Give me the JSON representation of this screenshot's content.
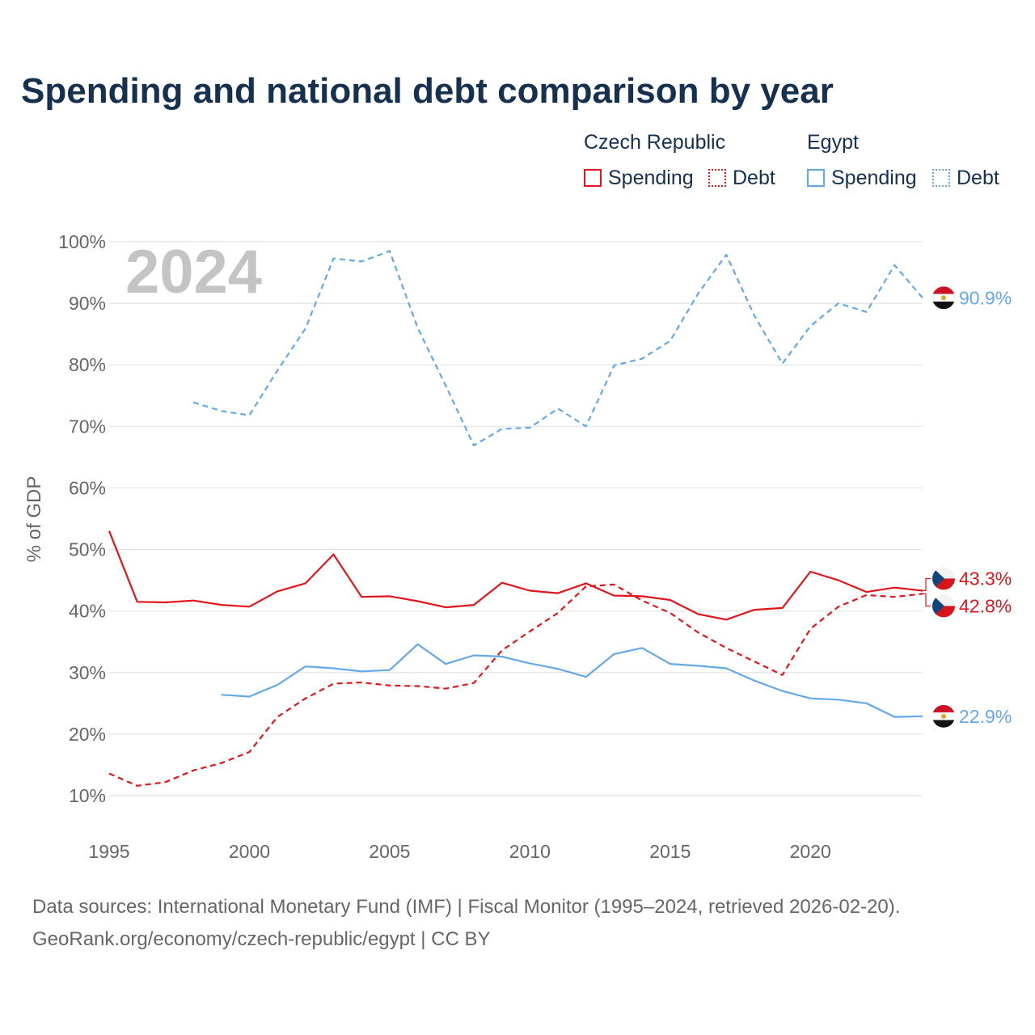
{
  "title": "Spending and national debt comparison by year",
  "legend": {
    "groups": [
      {
        "name": "Czech Republic",
        "spending_label": "Spending",
        "debt_label": "Debt",
        "color": "#e3151a"
      },
      {
        "name": "Egypt",
        "spending_label": "Spending",
        "debt_label": "Debt",
        "color": "#63a8e8"
      }
    ]
  },
  "chart_data": {
    "type": "line",
    "year_watermark": "2024",
    "ylabel": "% of GDP",
    "ylim": [
      10,
      100
    ],
    "yticks": [
      10,
      20,
      30,
      40,
      50,
      60,
      70,
      80,
      90,
      100
    ],
    "ytick_labels": [
      "10%",
      "20%",
      "30%",
      "40%",
      "50%",
      "60%",
      "70%",
      "80%",
      "90%",
      "100%"
    ],
    "xlim": [
      1995,
      2024
    ],
    "xticks": [
      1995,
      2000,
      2005,
      2010,
      2015,
      2020
    ],
    "xtick_labels": [
      "1995",
      "2000",
      "2005",
      "2010",
      "2015",
      "2020"
    ],
    "series": [
      {
        "name": "Czech Republic Spending",
        "country": "Czech Republic",
        "kind": "spending",
        "color": "#e3151a",
        "x": [
          1995,
          1996,
          1997,
          1998,
          1999,
          2000,
          2001,
          2002,
          2003,
          2004,
          2005,
          2006,
          2007,
          2008,
          2009,
          2010,
          2011,
          2012,
          2013,
          2014,
          2015,
          2016,
          2017,
          2018,
          2019,
          2020,
          2021,
          2022,
          2023,
          2024
        ],
        "values": [
          53.0,
          41.5,
          41.4,
          41.7,
          41.0,
          40.7,
          43.2,
          44.5,
          49.2,
          42.3,
          42.4,
          41.6,
          40.6,
          41.0,
          44.6,
          43.3,
          42.9,
          44.5,
          42.5,
          42.4,
          41.8,
          39.5,
          38.6,
          40.2,
          40.5,
          46.4,
          45.0,
          43.1,
          43.8,
          43.3
        ],
        "end_label": "43.3%"
      },
      {
        "name": "Czech Republic Debt",
        "country": "Czech Republic",
        "kind": "debt",
        "color": "#e3151a",
        "x": [
          1995,
          1996,
          1997,
          1998,
          1999,
          2000,
          2001,
          2002,
          2003,
          2004,
          2005,
          2006,
          2007,
          2008,
          2009,
          2010,
          2011,
          2012,
          2013,
          2014,
          2015,
          2016,
          2017,
          2018,
          2019,
          2020,
          2021,
          2022,
          2023,
          2024
        ],
        "values": [
          13.6,
          11.6,
          12.2,
          14.1,
          15.3,
          17.1,
          22.8,
          25.8,
          28.2,
          28.4,
          27.9,
          27.8,
          27.4,
          28.3,
          33.6,
          36.7,
          39.7,
          44.0,
          44.3,
          41.7,
          39.7,
          36.5,
          34.0,
          31.8,
          29.6,
          37.1,
          40.7,
          42.6,
          42.3,
          42.8
        ],
        "end_label": "42.8%"
      },
      {
        "name": "Egypt Spending",
        "country": "Egypt",
        "kind": "spending",
        "color": "#63a8e8",
        "x": [
          1999,
          2000,
          2001,
          2002,
          2003,
          2004,
          2005,
          2006,
          2007,
          2008,
          2009,
          2010,
          2011,
          2012,
          2013,
          2014,
          2015,
          2016,
          2017,
          2018,
          2019,
          2020,
          2021,
          2022,
          2023,
          2024
        ],
        "values": [
          26.4,
          26.1,
          28.0,
          31.0,
          30.7,
          30.2,
          30.4,
          34.6,
          31.4,
          32.8,
          32.6,
          31.5,
          30.6,
          29.3,
          33.0,
          34.0,
          31.4,
          31.1,
          30.7,
          28.7,
          27.0,
          25.8,
          25.6,
          25.0,
          22.8,
          22.9
        ],
        "end_label": "22.9%"
      },
      {
        "name": "Egypt Debt",
        "country": "Egypt",
        "kind": "debt",
        "color": "#63a8e8",
        "x": [
          1998,
          1999,
          2000,
          2001,
          2002,
          2003,
          2004,
          2005,
          2006,
          2007,
          2008,
          2009,
          2010,
          2011,
          2012,
          2013,
          2014,
          2015,
          2016,
          2017,
          2018,
          2019,
          2020,
          2021,
          2022,
          2023,
          2024
        ],
        "values": [
          73.9,
          72.5,
          71.8,
          79.1,
          85.9,
          97.3,
          96.8,
          98.5,
          86.0,
          76.6,
          66.9,
          69.6,
          69.8,
          72.9,
          70.0,
          79.9,
          81.0,
          83.9,
          91.6,
          97.9,
          88.0,
          80.2,
          86.3,
          90.0,
          88.6,
          96.2,
          90.9
        ],
        "end_label": "90.9%"
      }
    ]
  },
  "footer": {
    "line1": "Data sources: International Monetary Fund (IMF) | Fiscal Monitor (1995–2024, retrieved 2026-02-20).",
    "line2": "GeoRank.org/economy/czech-republic/egypt | CC BY"
  }
}
